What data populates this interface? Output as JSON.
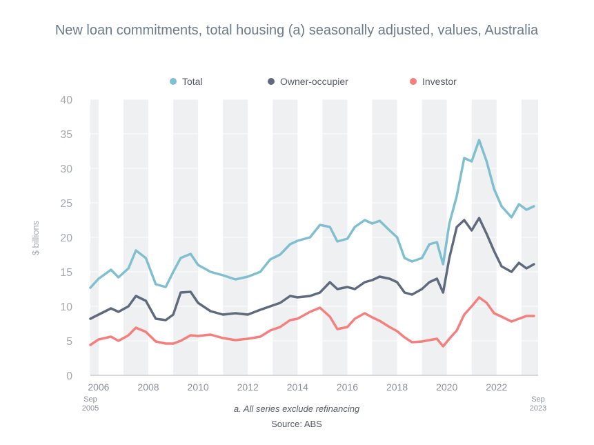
{
  "chart_data": {
    "type": "line",
    "title": "New loan commitments, total housing (a) seasonally adjusted, values, Australia",
    "ylabel": "$ billions",
    "ylim": [
      0,
      40
    ],
    "yticks": [
      0,
      5,
      10,
      15,
      20,
      25,
      30,
      35,
      40
    ],
    "xlim": [
      2005.67,
      2023.67
    ],
    "xticks": [
      "2006",
      "2008",
      "2010",
      "2012",
      "2014",
      "2016",
      "2018",
      "2020",
      "2022"
    ],
    "x_start_label": [
      "Sep",
      "2005"
    ],
    "x_end_label": [
      "Sep",
      "2023"
    ],
    "grid": "alternating vertical year bands",
    "legend_position": "top",
    "footnote": "a.  All series exclude refinancing",
    "source": "Source: ABS",
    "series": [
      {
        "name": "Total",
        "color": "#7fbfcf",
        "points": [
          [
            2005.67,
            12.7
          ],
          [
            2006.0,
            14.0
          ],
          [
            2006.5,
            15.3
          ],
          [
            2006.8,
            14.2
          ],
          [
            2007.2,
            15.5
          ],
          [
            2007.5,
            18.1
          ],
          [
            2007.9,
            17.0
          ],
          [
            2008.3,
            13.2
          ],
          [
            2008.7,
            12.8
          ],
          [
            2009.0,
            15.0
          ],
          [
            2009.3,
            17.0
          ],
          [
            2009.7,
            17.6
          ],
          [
            2010.0,
            16.0
          ],
          [
            2010.5,
            15.0
          ],
          [
            2011.0,
            14.5
          ],
          [
            2011.5,
            13.9
          ],
          [
            2012.0,
            14.3
          ],
          [
            2012.5,
            15.0
          ],
          [
            2012.9,
            16.8
          ],
          [
            2013.3,
            17.5
          ],
          [
            2013.7,
            19.0
          ],
          [
            2014.0,
            19.5
          ],
          [
            2014.5,
            20.0
          ],
          [
            2014.9,
            21.8
          ],
          [
            2015.3,
            21.5
          ],
          [
            2015.6,
            19.4
          ],
          [
            2016.0,
            19.8
          ],
          [
            2016.3,
            21.5
          ],
          [
            2016.7,
            22.5
          ],
          [
            2017.0,
            22.0
          ],
          [
            2017.3,
            22.4
          ],
          [
            2017.7,
            21.0
          ],
          [
            2018.0,
            20.0
          ],
          [
            2018.3,
            17.0
          ],
          [
            2018.6,
            16.5
          ],
          [
            2019.0,
            17.0
          ],
          [
            2019.3,
            19.0
          ],
          [
            2019.6,
            19.3
          ],
          [
            2019.85,
            16.1
          ],
          [
            2020.1,
            22.0
          ],
          [
            2020.4,
            26.0
          ],
          [
            2020.7,
            31.5
          ],
          [
            2021.0,
            31.0
          ],
          [
            2021.3,
            34.1
          ],
          [
            2021.6,
            31.0
          ],
          [
            2021.9,
            27.0
          ],
          [
            2022.2,
            24.5
          ],
          [
            2022.6,
            22.9
          ],
          [
            2022.9,
            24.8
          ],
          [
            2023.2,
            24.0
          ],
          [
            2023.5,
            24.5
          ]
        ]
      },
      {
        "name": "Owner-occupier",
        "color": "#5f6b7d",
        "points": [
          [
            2005.67,
            8.2
          ],
          [
            2006.0,
            8.8
          ],
          [
            2006.5,
            9.7
          ],
          [
            2006.8,
            9.2
          ],
          [
            2007.2,
            10.0
          ],
          [
            2007.5,
            11.5
          ],
          [
            2007.9,
            10.8
          ],
          [
            2008.3,
            8.2
          ],
          [
            2008.7,
            8.0
          ],
          [
            2009.0,
            8.8
          ],
          [
            2009.3,
            12.0
          ],
          [
            2009.7,
            12.1
          ],
          [
            2010.0,
            10.5
          ],
          [
            2010.5,
            9.3
          ],
          [
            2011.0,
            8.8
          ],
          [
            2011.5,
            9.0
          ],
          [
            2012.0,
            8.8
          ],
          [
            2012.5,
            9.5
          ],
          [
            2012.9,
            10.0
          ],
          [
            2013.3,
            10.5
          ],
          [
            2013.7,
            11.5
          ],
          [
            2014.0,
            11.3
          ],
          [
            2014.5,
            11.5
          ],
          [
            2014.9,
            12.0
          ],
          [
            2015.3,
            13.5
          ],
          [
            2015.6,
            12.5
          ],
          [
            2016.0,
            12.8
          ],
          [
            2016.3,
            12.5
          ],
          [
            2016.7,
            13.5
          ],
          [
            2017.0,
            13.8
          ],
          [
            2017.3,
            14.3
          ],
          [
            2017.7,
            14.0
          ],
          [
            2018.0,
            13.5
          ],
          [
            2018.3,
            12.0
          ],
          [
            2018.6,
            11.7
          ],
          [
            2019.0,
            12.5
          ],
          [
            2019.3,
            13.5
          ],
          [
            2019.6,
            14.0
          ],
          [
            2019.85,
            12.0
          ],
          [
            2020.1,
            17.0
          ],
          [
            2020.4,
            21.5
          ],
          [
            2020.7,
            22.5
          ],
          [
            2021.0,
            21.0
          ],
          [
            2021.3,
            22.8
          ],
          [
            2021.6,
            20.5
          ],
          [
            2021.9,
            18.0
          ],
          [
            2022.2,
            15.8
          ],
          [
            2022.6,
            15.0
          ],
          [
            2022.9,
            16.3
          ],
          [
            2023.2,
            15.5
          ],
          [
            2023.5,
            16.1
          ]
        ]
      },
      {
        "name": "Investor",
        "color": "#f47f7d",
        "points": [
          [
            2005.67,
            4.4
          ],
          [
            2006.0,
            5.2
          ],
          [
            2006.5,
            5.6
          ],
          [
            2006.8,
            5.0
          ],
          [
            2007.2,
            5.8
          ],
          [
            2007.5,
            6.9
          ],
          [
            2007.9,
            6.3
          ],
          [
            2008.3,
            4.9
          ],
          [
            2008.7,
            4.6
          ],
          [
            2009.0,
            4.6
          ],
          [
            2009.3,
            5.0
          ],
          [
            2009.7,
            5.8
          ],
          [
            2010.0,
            5.7
          ],
          [
            2010.5,
            5.9
          ],
          [
            2011.0,
            5.4
          ],
          [
            2011.5,
            5.1
          ],
          [
            2012.0,
            5.3
          ],
          [
            2012.5,
            5.6
          ],
          [
            2012.9,
            6.5
          ],
          [
            2013.3,
            7.0
          ],
          [
            2013.7,
            8.0
          ],
          [
            2014.0,
            8.2
          ],
          [
            2014.5,
            9.2
          ],
          [
            2014.9,
            9.8
          ],
          [
            2015.3,
            8.5
          ],
          [
            2015.6,
            6.7
          ],
          [
            2016.0,
            7.0
          ],
          [
            2016.3,
            8.2
          ],
          [
            2016.7,
            9.0
          ],
          [
            2017.0,
            8.4
          ],
          [
            2017.3,
            7.9
          ],
          [
            2017.7,
            7.0
          ],
          [
            2018.0,
            6.4
          ],
          [
            2018.3,
            5.5
          ],
          [
            2018.6,
            4.8
          ],
          [
            2019.0,
            4.9
          ],
          [
            2019.3,
            5.1
          ],
          [
            2019.6,
            5.3
          ],
          [
            2019.85,
            4.2
          ],
          [
            2020.1,
            5.3
          ],
          [
            2020.4,
            6.5
          ],
          [
            2020.7,
            8.8
          ],
          [
            2021.0,
            10.0
          ],
          [
            2021.3,
            11.3
          ],
          [
            2021.6,
            10.5
          ],
          [
            2021.9,
            9.0
          ],
          [
            2022.2,
            8.5
          ],
          [
            2022.6,
            7.8
          ],
          [
            2022.9,
            8.2
          ],
          [
            2023.2,
            8.6
          ],
          [
            2023.5,
            8.6
          ]
        ]
      }
    ]
  }
}
